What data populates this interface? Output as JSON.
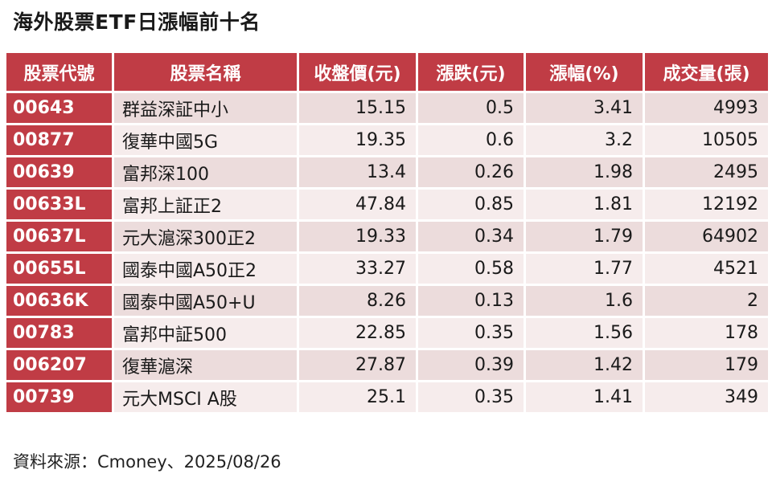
{
  "title": "海外股票ETF日漲幅前十名",
  "source": "資料來源：Cmoney、2025/08/26",
  "chart_data": {
    "type": "table",
    "columns": [
      "股票代號",
      "股票名稱",
      "收盤價(元)",
      "漲跌(元)",
      "漲幅(%)",
      "成交量(張)"
    ],
    "rows": [
      [
        "00643",
        "群益深証中小",
        "15.15",
        "0.5",
        "3.41",
        "4993"
      ],
      [
        "00877",
        "復華中國5G",
        "19.35",
        "0.6",
        "3.2",
        "10505"
      ],
      [
        "00639",
        "富邦深100",
        "13.4",
        "0.26",
        "1.98",
        "2495"
      ],
      [
        "00633L",
        "富邦上証正2",
        "47.84",
        "0.85",
        "1.81",
        "12192"
      ],
      [
        "00637L",
        "元大滬深300正2",
        "19.33",
        "0.34",
        "1.79",
        "64902"
      ],
      [
        "00655L",
        "國泰中國A50正2",
        "33.27",
        "0.58",
        "1.77",
        "4521"
      ],
      [
        "00636K",
        "國泰中國A50+U",
        "8.26",
        "0.13",
        "1.6",
        "2"
      ],
      [
        "00783",
        "富邦中証500",
        "22.85",
        "0.35",
        "1.56",
        "178"
      ],
      [
        "006207",
        "復華滬深",
        "27.87",
        "0.39",
        "1.42",
        "179"
      ],
      [
        "00739",
        "元大MSCI A股",
        "25.1",
        "0.35",
        "1.41",
        "349"
      ]
    ]
  }
}
